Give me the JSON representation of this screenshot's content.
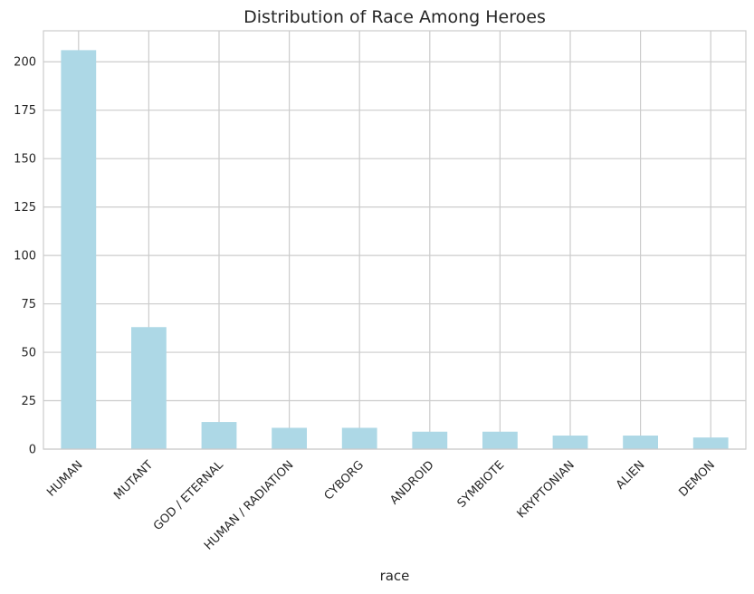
{
  "chart_data": {
    "type": "bar",
    "title": "Distribution of Race Among Heroes",
    "xlabel": "race",
    "ylabel": "",
    "categories": [
      "HUMAN",
      "MUTANT",
      "GOD / ETERNAL",
      "HUMAN / RADIATION",
      "CYBORG",
      "ANDROID",
      "SYMBIOTE",
      "KRYPTONIAN",
      "ALIEN",
      "DEMON"
    ],
    "values": [
      206,
      63,
      14,
      11,
      11,
      9,
      9,
      7,
      7,
      6
    ],
    "ylim": [
      0,
      216
    ],
    "yticks": [
      0,
      25,
      50,
      75,
      100,
      125,
      150,
      175,
      200
    ],
    "grid": true,
    "legend": "none",
    "bar_color": "#add8e6",
    "grid_color": "#cccccc",
    "text_color": "#262626"
  }
}
